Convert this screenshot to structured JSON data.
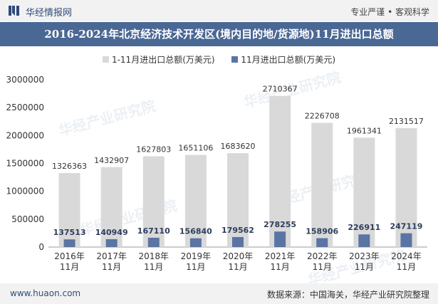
{
  "header": {
    "brand": "华经情报网",
    "slogan": "专业严谨 • 客观科学"
  },
  "footer": {
    "url": "www.huaon.com",
    "source": "数据来源：中国海关，华经产业研究院整理"
  },
  "watermark": "华经产业研究院",
  "colors": {
    "series_total": "#d9d9d9",
    "series_nov": "#5a74a3",
    "title_bg": "#4a6894"
  },
  "chart_data": {
    "type": "bar",
    "title": "2016-2024年北京经济技术开发区(境内目的地/货源地)11月进出口总额",
    "categories": [
      "2016年\n11月",
      "2017年\n11月",
      "2018年\n11月",
      "2019年\n11月",
      "2020年\n11月",
      "2021年\n11月",
      "2022年\n11月",
      "2023年\n11月",
      "2024年\n11月"
    ],
    "series": [
      {
        "name": "1-11月进出口总额(万美元)",
        "values": [
          1326363,
          1432907,
          1627803,
          1651106,
          1683620,
          2710367,
          2226708,
          1961341,
          2131517
        ]
      },
      {
        "name": "11月进出口总额(万美元)",
        "values": [
          137513,
          140949,
          167110,
          156840,
          179562,
          278255,
          158906,
          226911,
          247119
        ]
      }
    ],
    "yticks": [
      "0",
      "500000",
      "1000000",
      "1500000",
      "2000000",
      "2500000",
      "3000000"
    ],
    "ylim": [
      0,
      3000000
    ],
    "xlabel": "",
    "ylabel": ""
  }
}
